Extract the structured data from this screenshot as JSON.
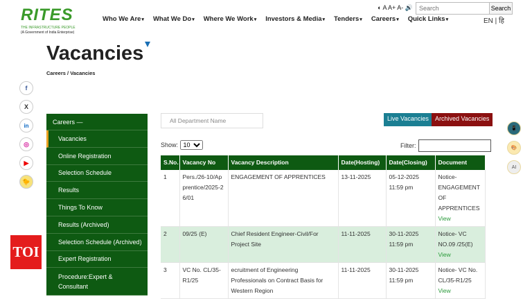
{
  "header": {
    "logo_text": "RITES",
    "logo_tagline": "THE INFRASTRUCTURE PEOPLE",
    "logo_sub": "(A Government of India Enterprise)",
    "nav": [
      "Who We Are",
      "What We Do",
      "Where We Work",
      "Investors & Media",
      "Tenders",
      "Careers",
      "Quick Links"
    ],
    "tools": "◐ A A+ A- 🔊",
    "search_placeholder": "Search",
    "search_button": "Search",
    "lang": "EN | हि"
  },
  "page": {
    "title": "Vacancies",
    "breadcrumb": "Careers  /  Vacancies"
  },
  "social": [
    "f",
    "X",
    "in",
    "◎",
    "▶",
    "🐤"
  ],
  "sidebar": {
    "header": "Careers —",
    "items": [
      "Vacancies",
      "Online Registration",
      "Selection Schedule",
      "Results",
      "Things To Know",
      "Results (Archived)",
      "Selection Schedule (Archived)",
      "Expert Registration",
      "Procedure:Expert & Consultant"
    ]
  },
  "toi": "TOI",
  "filters": {
    "department": "All Department Name",
    "live": "Live Vacancies",
    "archived": "Archived Vacancies",
    "show_label": "Show:",
    "show_value": "10",
    "filter_label": "Filter:"
  },
  "colors": {
    "green": "#0e5a12",
    "live": "#1b7f93",
    "archived": "#8b1010",
    "accent": "#e8a020"
  },
  "table": {
    "headers": [
      "S.No.",
      "Vacancy No",
      "Vacancy Description",
      "Date(Hosting)",
      "Date(Closing)",
      "Document"
    ],
    "rows": [
      {
        "sno": "1",
        "no": "Pers./26-10/Apprentice/2025-26/01",
        "desc": "ENGAGEMENT OF APPRENTICES",
        "host": "13-11-2025",
        "close": "05-12-2025 11:59 pm",
        "doc": "Notice-ENGAGEMENT OF APPRENTICES",
        "view": "View"
      },
      {
        "sno": "2",
        "no": "09/25 (E)",
        "desc": "Chief Resident Engineer-Civil/For Project Site",
        "host": "11-11-2025",
        "close": "30-11-2025 11:59 pm",
        "doc": "Notice- VC NO.09 /25(E)",
        "view": "View"
      },
      {
        "sno": "3",
        "no": "VC No. CL/35-R1/25",
        "desc": "ecruitment of Engineering Professionals on Contract Basis for Western Region",
        "host": "11-11-2025",
        "close": "30-11-2025 11:59 pm",
        "doc": "Notice- VC No. CL/35-R1/25",
        "view": "View"
      }
    ]
  },
  "right_icons": [
    "📱",
    "🎨",
    "AI"
  ]
}
